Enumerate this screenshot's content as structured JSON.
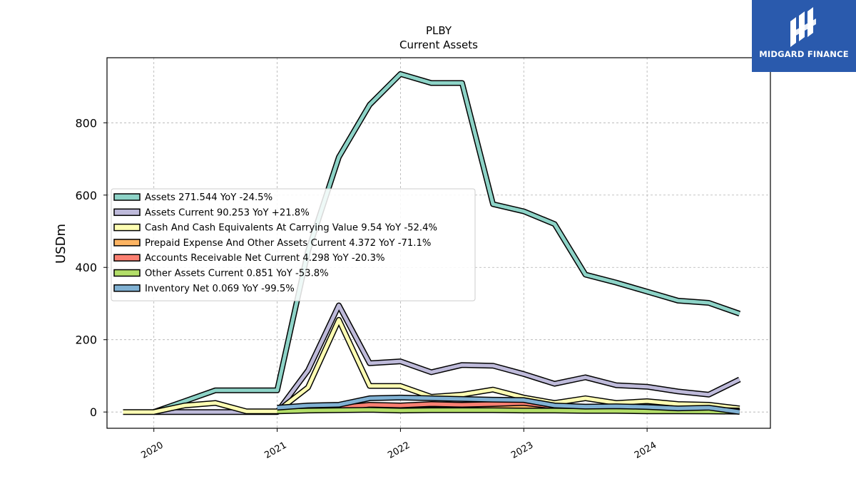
{
  "chart_data": {
    "type": "line",
    "title": "PLBY",
    "subtitle": "Current  Assets",
    "ylabel": "USDm",
    "ylim": [
      -45,
      980
    ],
    "yticks": [
      0,
      200,
      400,
      600,
      800
    ],
    "xlim": [
      2019.62,
      2025.0
    ],
    "xticks": [
      {
        "v": 2020.0,
        "label": "2020"
      },
      {
        "v": 2021.0,
        "label": "2021"
      },
      {
        "v": 2022.0,
        "label": "2022"
      },
      {
        "v": 2023.0,
        "label": "2023"
      },
      {
        "v": 2024.0,
        "label": "2024"
      }
    ],
    "grid": true,
    "legend_position": "center-left",
    "series": [
      {
        "name": "Assets",
        "legend": "Assets  271.544 YoY -24.5%",
        "color": "#8dd3c7",
        "points": [
          [
            2020.0,
            0
          ],
          [
            2020.5,
            60
          ],
          [
            2021.0,
            60
          ],
          [
            2021.25,
            445
          ],
          [
            2021.5,
            705
          ],
          [
            2021.75,
            850
          ],
          [
            2022.0,
            935
          ],
          [
            2022.25,
            910
          ],
          [
            2022.5,
            910
          ],
          [
            2022.75,
            575
          ],
          [
            2023.0,
            555
          ],
          [
            2023.25,
            520
          ],
          [
            2023.5,
            380
          ],
          [
            2023.75,
            358
          ],
          [
            2024.0,
            333
          ],
          [
            2024.25,
            308
          ],
          [
            2024.5,
            302
          ],
          [
            2024.75,
            272
          ]
        ]
      },
      {
        "name": "Assets Current",
        "legend": "Assets Current  90.253 YoY +21.8%",
        "color": "#bebada",
        "points": [
          [
            2020.0,
            0
          ],
          [
            2020.5,
            0
          ],
          [
            2021.0,
            0
          ],
          [
            2021.25,
            115
          ],
          [
            2021.5,
            295
          ],
          [
            2021.75,
            135
          ],
          [
            2022.0,
            140
          ],
          [
            2022.25,
            110
          ],
          [
            2022.5,
            130
          ],
          [
            2022.75,
            128
          ],
          [
            2023.0,
            105
          ],
          [
            2023.25,
            78
          ],
          [
            2023.5,
            96
          ],
          [
            2023.75,
            74
          ],
          [
            2024.0,
            70
          ],
          [
            2024.25,
            57
          ],
          [
            2024.5,
            48
          ],
          [
            2024.75,
            90
          ]
        ]
      },
      {
        "name": "Cash And Cash Equivalents At Carrying Value",
        "legend": "Cash And Cash Equivalents At Carrying Value  9.54 YoY -52.4%",
        "color": "#ffffb3",
        "points": [
          [
            2019.75,
            0
          ],
          [
            2020.0,
            0
          ],
          [
            2020.25,
            18
          ],
          [
            2020.5,
            25
          ],
          [
            2020.75,
            2
          ],
          [
            2021.0,
            2
          ],
          [
            2021.25,
            68
          ],
          [
            2021.5,
            255
          ],
          [
            2021.75,
            72
          ],
          [
            2022.0,
            72
          ],
          [
            2022.25,
            42
          ],
          [
            2022.5,
            48
          ],
          [
            2022.75,
            62
          ],
          [
            2023.0,
            40
          ],
          [
            2023.25,
            25
          ],
          [
            2023.5,
            38
          ],
          [
            2023.75,
            25
          ],
          [
            2024.0,
            30
          ],
          [
            2024.25,
            22
          ],
          [
            2024.5,
            20
          ],
          [
            2024.75,
            10
          ]
        ]
      },
      {
        "name": "Prepaid Expense And Other Assets Current",
        "legend": "Prepaid Expense And Other Assets Current  4.372 YoY -71.1%",
        "color": "#fdb462",
        "points": [
          [
            2021.0,
            2
          ],
          [
            2021.25,
            8
          ],
          [
            2021.5,
            10
          ],
          [
            2021.75,
            18
          ],
          [
            2022.0,
            15
          ],
          [
            2022.25,
            20
          ],
          [
            2022.5,
            15
          ],
          [
            2022.75,
            15
          ],
          [
            2023.0,
            14
          ],
          [
            2023.25,
            12
          ],
          [
            2023.5,
            12
          ],
          [
            2023.75,
            10
          ],
          [
            2024.0,
            9
          ],
          [
            2024.25,
            8
          ],
          [
            2024.5,
            6
          ],
          [
            2024.75,
            4
          ]
        ]
      },
      {
        "name": "Accounts Receivable Net Current",
        "legend": "Accounts Receivable Net Current  4.298 YoY -20.3%",
        "color": "#fb8072",
        "points": [
          [
            2021.0,
            3
          ],
          [
            2021.25,
            10
          ],
          [
            2021.5,
            12
          ],
          [
            2021.75,
            20
          ],
          [
            2022.0,
            18
          ],
          [
            2022.25,
            22
          ],
          [
            2022.5,
            20
          ],
          [
            2022.75,
            22
          ],
          [
            2023.0,
            25
          ],
          [
            2023.25,
            15
          ],
          [
            2023.5,
            12
          ],
          [
            2023.75,
            10
          ],
          [
            2024.0,
            8
          ],
          [
            2024.25,
            6
          ],
          [
            2024.5,
            5
          ],
          [
            2024.75,
            4
          ]
        ]
      },
      {
        "name": "Other Assets Current",
        "legend": "Other Assets Current  0.851 YoY -53.8%",
        "color": "#b3de69",
        "points": [
          [
            2021.0,
            2
          ],
          [
            2021.25,
            4
          ],
          [
            2021.5,
            5
          ],
          [
            2021.75,
            6
          ],
          [
            2022.0,
            4
          ],
          [
            2022.25,
            5
          ],
          [
            2022.5,
            5
          ],
          [
            2022.75,
            5
          ],
          [
            2023.0,
            4
          ],
          [
            2023.25,
            4
          ],
          [
            2023.5,
            3
          ],
          [
            2023.75,
            3
          ],
          [
            2024.0,
            2
          ],
          [
            2024.25,
            2
          ],
          [
            2024.5,
            1.5
          ],
          [
            2024.75,
            0.85
          ]
        ]
      },
      {
        "name": "Inventory Net",
        "legend": "Inventory Net  0.069 YoY -99.5%",
        "color": "#80b1d3",
        "points": [
          [
            2021.0,
            12
          ],
          [
            2021.25,
            18
          ],
          [
            2021.5,
            20
          ],
          [
            2021.75,
            38
          ],
          [
            2022.0,
            40
          ],
          [
            2022.25,
            38
          ],
          [
            2022.5,
            36
          ],
          [
            2022.75,
            34
          ],
          [
            2023.0,
            33
          ],
          [
            2023.25,
            18
          ],
          [
            2023.5,
            15
          ],
          [
            2023.75,
            16
          ],
          [
            2024.0,
            14
          ],
          [
            2024.25,
            10
          ],
          [
            2024.5,
            12
          ],
          [
            2024.75,
            0.07
          ]
        ]
      }
    ]
  },
  "watermark": {
    "brand": "MIDGARD FINANCE",
    "logo_color": "#2a5aad"
  }
}
